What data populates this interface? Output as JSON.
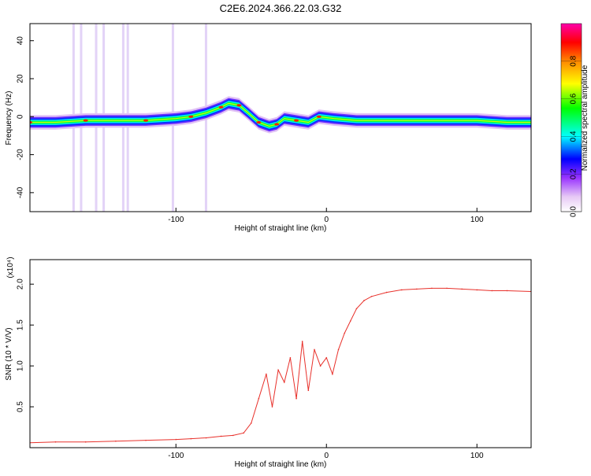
{
  "title": "C2E6.2024.366.22.03.G32",
  "chart_data": [
    {
      "type": "heatmap",
      "xlabel": "Height of straight line (km)",
      "ylabel": "Frequency (Hz)",
      "xlim": [
        -197,
        136
      ],
      "ylim": [
        -50,
        49
      ],
      "xticks": [
        -100,
        0,
        100
      ],
      "xtick_labels": [
        "-100",
        "0",
        "100"
      ],
      "yticks": [
        -40,
        -20,
        0,
        20,
        40
      ],
      "ytick_labels": [
        "-40",
        "-20",
        "0",
        "20",
        "40"
      ],
      "colorbar": {
        "label": "Normalized spectral amplitude",
        "range": [
          0,
          1
        ],
        "ticks": [
          0.0,
          0.2,
          0.4,
          0.6,
          0.8
        ],
        "tick_labels": [
          "0.0",
          "0.2",
          "0.4",
          "0.6",
          "0.8"
        ],
        "colormap": [
          "#ffffff",
          "#e6c8f5",
          "#9933ff",
          "#0000ff",
          "#00ffff",
          "#00ff00",
          "#ffff00",
          "#ff8800",
          "#ff0000",
          "#ff00aa"
        ]
      },
      "ridge": [
        {
          "x": -197,
          "y": -3
        },
        {
          "x": -180,
          "y": -3
        },
        {
          "x": -160,
          "y": -2
        },
        {
          "x": -140,
          "y": -2
        },
        {
          "x": -120,
          "y": -2
        },
        {
          "x": -100,
          "y": -1
        },
        {
          "x": -90,
          "y": 0
        },
        {
          "x": -80,
          "y": 2
        },
        {
          "x": -70,
          "y": 5
        },
        {
          "x": -65,
          "y": 7
        },
        {
          "x": -58,
          "y": 6
        },
        {
          "x": -52,
          "y": 2
        },
        {
          "x": -45,
          "y": -3
        },
        {
          "x": -38,
          "y": -5
        },
        {
          "x": -33,
          "y": -4
        },
        {
          "x": -28,
          "y": -1
        },
        {
          "x": -20,
          "y": -2
        },
        {
          "x": -12,
          "y": -3
        },
        {
          "x": -5,
          "y": 0
        },
        {
          "x": 5,
          "y": -1
        },
        {
          "x": 20,
          "y": -2
        },
        {
          "x": 40,
          "y": -2
        },
        {
          "x": 60,
          "y": -2
        },
        {
          "x": 80,
          "y": -2
        },
        {
          "x": 100,
          "y": -2
        },
        {
          "x": 120,
          "y": -3
        },
        {
          "x": 136,
          "y": -3
        }
      ],
      "vertical_streaks_x": [
        -168,
        -163,
        -153,
        -148,
        -135,
        -132,
        -102,
        -80
      ]
    },
    {
      "type": "line",
      "xlabel": "Height of straight line (km)",
      "ylabel": "SNR (10 * V/V)",
      "yscale_label": "(x10⁴)",
      "xlim": [
        -197,
        136
      ],
      "ylim": [
        0,
        2.3
      ],
      "xticks": [
        -100,
        0,
        100
      ],
      "xtick_labels": [
        "-100",
        "0",
        "100"
      ],
      "yticks": [
        0.5,
        1.0,
        1.5,
        2.0
      ],
      "ytick_labels": [
        "0.5",
        "1.0",
        "1.5",
        "2.0"
      ],
      "series": [
        {
          "color": "#e8302a",
          "x": [
            -197,
            -180,
            -160,
            -140,
            -120,
            -100,
            -90,
            -80,
            -70,
            -62,
            -55,
            -50,
            -45,
            -40,
            -36,
            -32,
            -28,
            -24,
            -20,
            -16,
            -12,
            -8,
            -4,
            0,
            4,
            8,
            12,
            16,
            20,
            25,
            30,
            40,
            50,
            60,
            70,
            80,
            90,
            100,
            110,
            120,
            136
          ],
          "y": [
            0.06,
            0.07,
            0.07,
            0.08,
            0.09,
            0.1,
            0.11,
            0.12,
            0.14,
            0.15,
            0.18,
            0.3,
            0.6,
            0.9,
            0.5,
            0.95,
            0.8,
            1.1,
            0.6,
            1.3,
            0.7,
            1.2,
            1.0,
            1.1,
            0.9,
            1.2,
            1.4,
            1.55,
            1.7,
            1.8,
            1.85,
            1.9,
            1.93,
            1.94,
            1.95,
            1.95,
            1.94,
            1.93,
            1.92,
            1.92,
            1.91
          ]
        }
      ]
    }
  ]
}
